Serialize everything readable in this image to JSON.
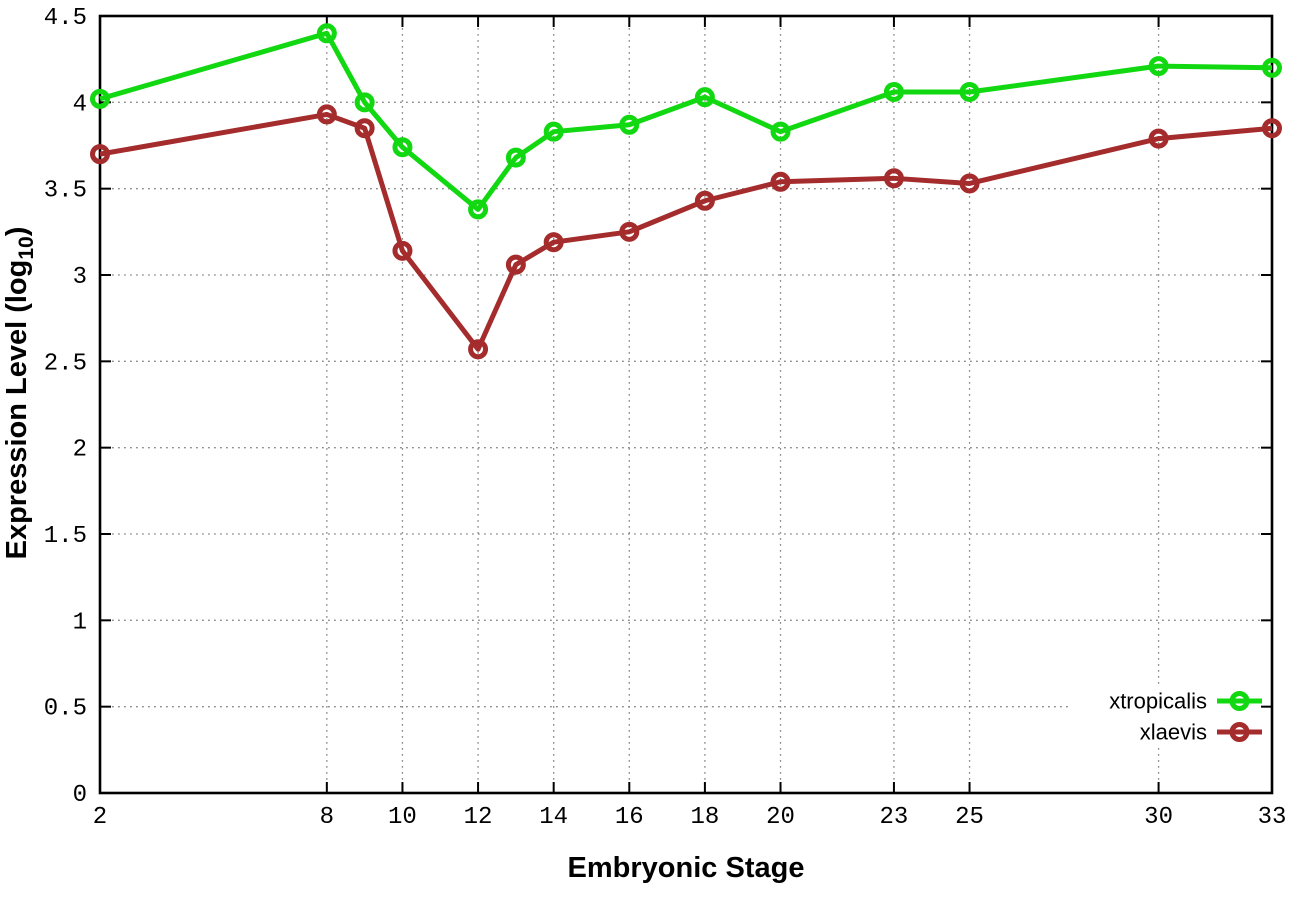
{
  "chart_data": {
    "type": "line",
    "title": "",
    "xlabel": "Embryonic Stage",
    "ylabel": {
      "main": "Expression Level (log",
      "sub": "10",
      "close": ")"
    },
    "x": [
      2,
      8,
      9,
      10,
      12,
      13,
      14,
      16,
      18,
      20,
      23,
      25,
      30,
      33
    ],
    "series": [
      {
        "name": "xtropicalis",
        "color": "#12d812",
        "values": [
          4.02,
          4.4,
          4.0,
          3.74,
          3.38,
          3.68,
          3.83,
          3.87,
          4.03,
          3.83,
          4.06,
          4.06,
          4.21,
          4.2
        ]
      },
      {
        "name": "xlaevis",
        "color": "#a52c2c",
        "values": [
          3.7,
          3.93,
          3.85,
          3.14,
          2.57,
          3.06,
          3.19,
          3.25,
          3.43,
          3.54,
          3.56,
          3.53,
          3.79,
          3.85
        ]
      }
    ],
    "x_ticks": [
      {
        "value": 2,
        "label": "2",
        "grid": false
      },
      {
        "value": 8,
        "label": "8",
        "grid": true
      },
      {
        "value": 10,
        "label": "10",
        "grid": true
      },
      {
        "value": 12,
        "label": "12",
        "grid": true
      },
      {
        "value": 14,
        "label": "14",
        "grid": true
      },
      {
        "value": 16,
        "label": "16",
        "grid": true
      },
      {
        "value": 18,
        "label": "18",
        "grid": true
      },
      {
        "value": 20,
        "label": "20",
        "grid": true
      },
      {
        "value": 23,
        "label": "23",
        "grid": true
      },
      {
        "value": 25,
        "label": "25",
        "grid": true
      },
      {
        "value": 30,
        "label": "30",
        "grid": true
      },
      {
        "value": 33,
        "label": "33",
        "grid": false
      }
    ],
    "y_ticks": [
      {
        "value": 0,
        "label": "0",
        "grid": false
      },
      {
        "value": 0.5,
        "label": "0.5",
        "grid": true
      },
      {
        "value": 1,
        "label": "1",
        "grid": true
      },
      {
        "value": 1.5,
        "label": "1.5",
        "grid": true
      },
      {
        "value": 2,
        "label": "2",
        "grid": true
      },
      {
        "value": 2.5,
        "label": "2.5",
        "grid": true
      },
      {
        "value": 3,
        "label": "3",
        "grid": true
      },
      {
        "value": 3.5,
        "label": "3.5",
        "grid": true
      },
      {
        "value": 4,
        "label": "4",
        "grid": true
      },
      {
        "value": 4.5,
        "label": "4.5",
        "grid": false
      }
    ],
    "xlim": [
      2,
      33
    ],
    "ylim": [
      0,
      4.5
    ],
    "grid": true,
    "legend_position": "bottom-right",
    "marker": "open-circle",
    "line_width": 5,
    "marker_radius": 7.5,
    "marker_stroke": 5,
    "colors": {
      "background": "#ffffff",
      "axis": "#000000",
      "grid": "#8a8a8a",
      "text": "#000000"
    }
  }
}
